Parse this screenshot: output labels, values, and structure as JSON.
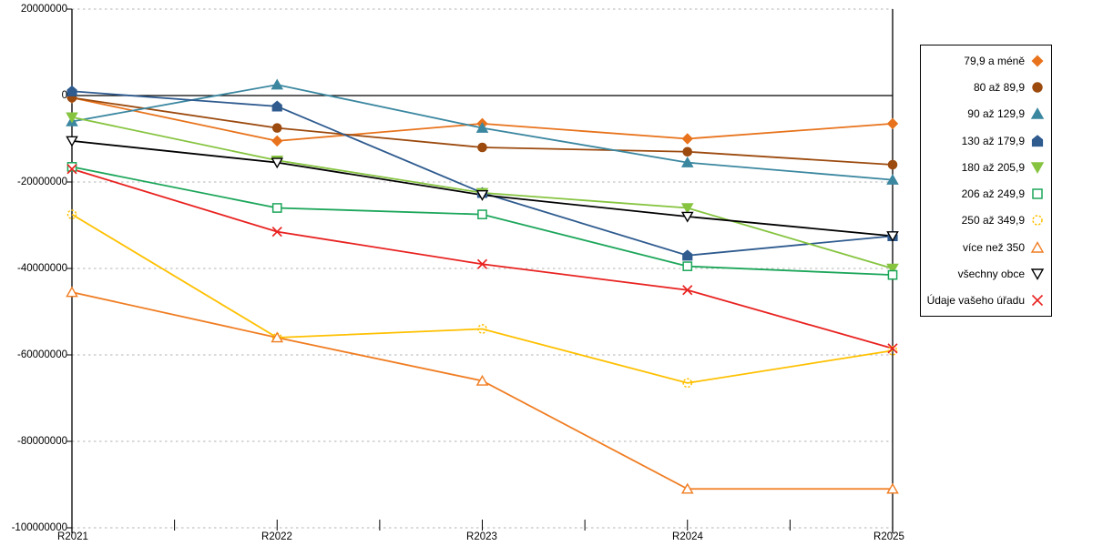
{
  "chart_data": {
    "type": "line",
    "title": "",
    "xlabel": "",
    "ylabel": "",
    "categories": [
      "R2021",
      "R2022",
      "R2023",
      "R2024",
      "R2025"
    ],
    "y_axis_labels": [
      "20000000",
      "0",
      "-20000000",
      "-40000000",
      "-60000000",
      "-80000000",
      "-100000000"
    ],
    "yticks": [
      20000000,
      0,
      -20000000,
      -40000000,
      -60000000,
      -80000000,
      -100000000
    ],
    "ylim": [
      -100000000,
      20000000
    ],
    "grid": "horizontal-dotted",
    "legend_position": "right-outside",
    "axis_color": "#000000",
    "gridline_color": "#b3b3b3",
    "series": [
      {
        "name": "79,9 a méně",
        "color": "#e8731c",
        "marker": "diamond",
        "marker_filled": true,
        "values": [
          -500000,
          -10500000,
          -6500000,
          -10000000,
          -6500000
        ]
      },
      {
        "name": "80 až 89,9",
        "color": "#9c4a0e",
        "marker": "circle",
        "marker_filled": true,
        "values": [
          -500000,
          -7500000,
          -12000000,
          -13000000,
          -16000000
        ]
      },
      {
        "name": "90 až 129,9",
        "color": "#3b87a0",
        "marker": "triangle-up",
        "marker_filled": true,
        "values": [
          -6000000,
          2500000,
          -7500000,
          -15500000,
          -19500000
        ]
      },
      {
        "name": "130 až 179,9",
        "color": "#2f5b8f",
        "marker": "pentagon",
        "marker_filled": true,
        "values": [
          1000000,
          -2500000,
          -22500000,
          -37000000,
          -32500000
        ]
      },
      {
        "name": "180 až 205,9",
        "color": "#86c440",
        "marker": "triangle-down",
        "marker_filled": true,
        "values": [
          -5000000,
          -15000000,
          -22500000,
          -26000000,
          -40000000
        ]
      },
      {
        "name": "206 až 249,9",
        "color": "#1ca65a",
        "marker": "square",
        "marker_filled": false,
        "values": [
          -16500000,
          -26000000,
          -27500000,
          -39500000,
          -41500000
        ]
      },
      {
        "name": "250 až 349,9",
        "color": "#ffc000",
        "marker": "circle-dashed",
        "marker_filled": false,
        "values": [
          -27500000,
          -56000000,
          -54000000,
          -66500000,
          -59000000
        ]
      },
      {
        "name": "více než 350",
        "color": "#f07d22",
        "marker": "triangle-up",
        "marker_filled": false,
        "values": [
          -45500000,
          -56000000,
          -66000000,
          -91000000,
          -91000000
        ]
      },
      {
        "name": "všechny obce",
        "color": "#000000",
        "marker": "triangle-down",
        "marker_filled": false,
        "values": [
          -10500000,
          -15500000,
          -23000000,
          -28000000,
          -32500000
        ]
      },
      {
        "name": "Údaje vašeho úřadu",
        "color": "#e82220",
        "marker": "x",
        "marker_filled": false,
        "values": [
          -17000000,
          -31500000,
          -39000000,
          -45000000,
          -58500000
        ]
      }
    ]
  }
}
